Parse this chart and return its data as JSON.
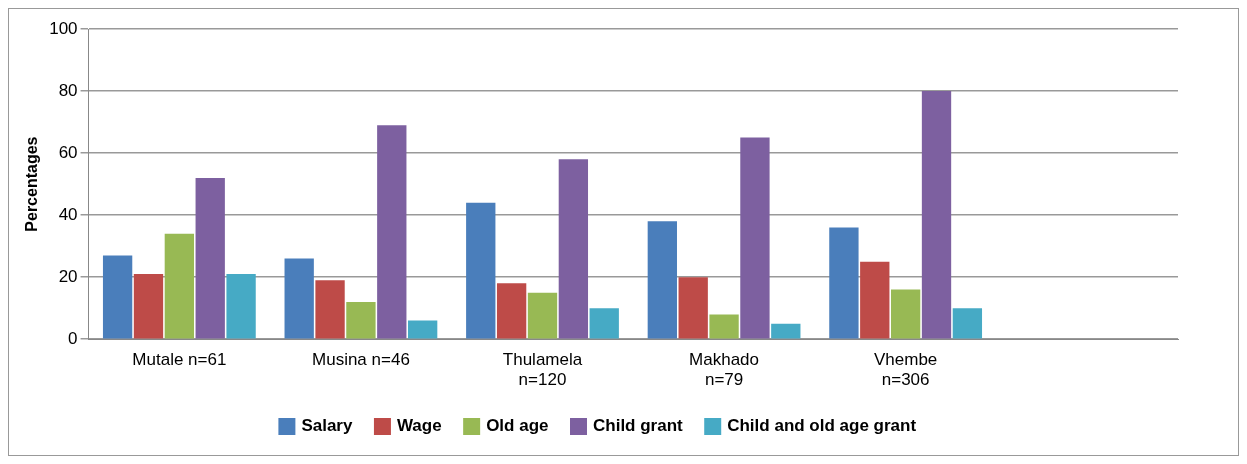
{
  "chart_data": {
    "type": "bar",
    "ylabel": "Percentages",
    "categories": [
      "Mutale n=61",
      "Musina n=46",
      "Thulamela n=120",
      "Makhado n=79",
      "Vhembe n=306",
      null
    ],
    "series": [
      {
        "name": "Salary",
        "color": "#4a7ebb",
        "values": [
          27,
          26,
          44,
          38,
          36,
          null
        ]
      },
      {
        "name": "Wage",
        "color": "#be4b48",
        "values": [
          21,
          19,
          18,
          20,
          25,
          null
        ]
      },
      {
        "name": "Old age",
        "color": "#98b954",
        "values": [
          34,
          12,
          15,
          8,
          16,
          null
        ]
      },
      {
        "name": "Child grant",
        "color": "#7d60a0",
        "values": [
          52,
          69,
          58,
          65,
          80,
          null
        ]
      },
      {
        "name": "Child and old age grant",
        "color": "#46aac5",
        "values": [
          21,
          6,
          10,
          5,
          10,
          null
        ]
      }
    ],
    "ylim": [
      0,
      100
    ],
    "yticks": [
      0,
      20,
      40,
      60,
      80,
      100
    ],
    "grid": "y",
    "legend": "bottom"
  }
}
